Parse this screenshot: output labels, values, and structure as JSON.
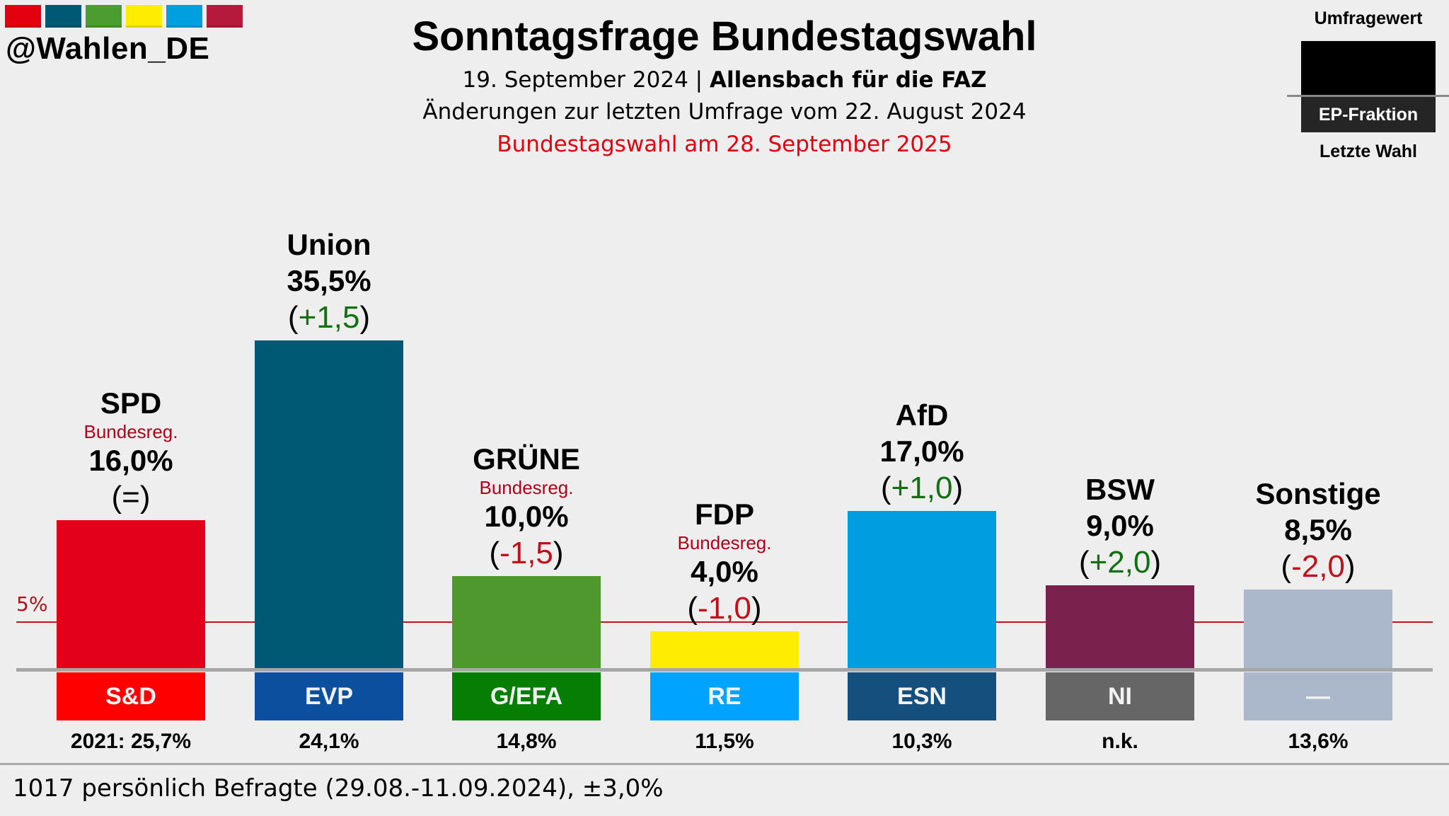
{
  "branding": {
    "handle": "@Wahlen_DE",
    "logo_colors": [
      "#e3000f",
      "#005974",
      "#4a9d2e",
      "#ffed00",
      "#00a0e0",
      "#b5193c"
    ]
  },
  "header": {
    "title": "Sonntagsfrage Bundestagswahl",
    "date": "19. September 2024",
    "separator": " | ",
    "institute": "Allensbach für die FAZ",
    "changes_note": "Änderungen zur letzten Umfrage vom 22. August 2024",
    "election_note": "Bundestagswahl am 28. September 2025"
  },
  "legend": {
    "top_label": "Umfragewert",
    "middle_label": "EP-Fraktion",
    "bottom_label": "Letzte Wahl"
  },
  "footer": {
    "text": "1017 persönlich Befragte (29.08.-11.09.2024), ±3,0%"
  },
  "chart_data": {
    "type": "bar",
    "title": "Sonntagsfrage Bundestagswahl",
    "xlabel": "",
    "ylabel": "",
    "ylim": [
      0,
      40
    ],
    "threshold": {
      "value": 5,
      "label": "5%",
      "color": "#c0151a"
    },
    "categories": [
      "SPD",
      "Union",
      "GRÜNE",
      "FDP",
      "AfD",
      "BSW",
      "Sonstige"
    ],
    "values": [
      16.0,
      35.5,
      10.0,
      4.0,
      17.0,
      9.0,
      8.5
    ],
    "parties": [
      {
        "name": "SPD",
        "gov": "Bundesreg.",
        "value": 16.0,
        "value_label": "16,0%",
        "change": "=",
        "change_sign": "neutral",
        "color": "#e3001b",
        "ep_group": "S&D",
        "ep_color": "#ff0000",
        "last_election": "2021: 25,7%"
      },
      {
        "name": "Union",
        "gov": "",
        "value": 35.5,
        "value_label": "35,5%",
        "change": "+1,5",
        "change_sign": "pos",
        "color": "#005974",
        "ep_group": "EVP",
        "ep_color": "#0b4f9e",
        "last_election": "24,1%"
      },
      {
        "name": "GRÜNE",
        "gov": "Bundesreg.",
        "value": 10.0,
        "value_label": "10,0%",
        "change": "-1,5",
        "change_sign": "neg",
        "color": "#4e982e",
        "ep_group": "G/EFA",
        "ep_color": "#067e04",
        "last_election": "14,8%"
      },
      {
        "name": "FDP",
        "gov": "Bundesreg.",
        "value": 4.0,
        "value_label": "4,0%",
        "change": "-1,0",
        "change_sign": "neg",
        "color": "#ffed00",
        "ep_group": "RE",
        "ep_color": "#00a3ff",
        "last_election": "11,5%"
      },
      {
        "name": "AfD",
        "gov": "",
        "value": 17.0,
        "value_label": "17,0%",
        "change": "+1,0",
        "change_sign": "pos",
        "color": "#009ee0",
        "ep_group": "ESN",
        "ep_color": "#154f7d",
        "last_election": "10,3%"
      },
      {
        "name": "BSW",
        "gov": "",
        "value": 9.0,
        "value_label": "9,0%",
        "change": "+2,0",
        "change_sign": "pos",
        "color": "#7a214e",
        "ep_group": "NI",
        "ep_color": "#666666",
        "last_election": "n.k."
      },
      {
        "name": "Sonstige",
        "gov": "",
        "value": 8.5,
        "value_label": "8,5%",
        "change": "-2,0",
        "change_sign": "neg",
        "color": "#abb8cb",
        "ep_group": "—",
        "ep_color": "#abb8cb",
        "last_election": "13,6%"
      }
    ]
  }
}
